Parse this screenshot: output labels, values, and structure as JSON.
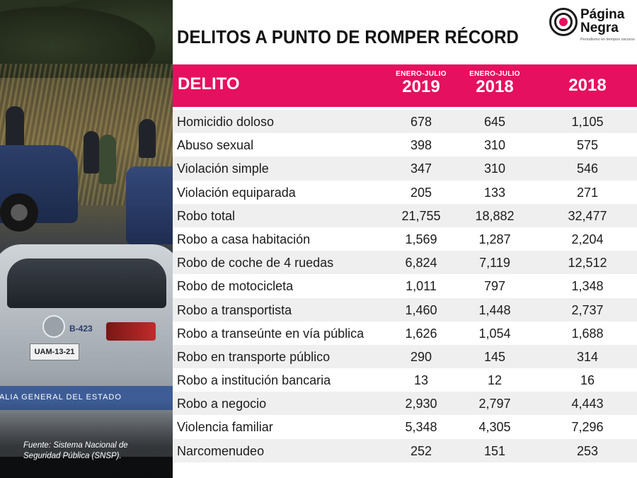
{
  "title": "DELITOS A PUNTO DE ROMPER RÉCORD",
  "logo": {
    "name_line1": "Página",
    "name_line2": "Negra",
    "tagline": "Periodismo en tiempos oscuros",
    "accent": "#e5105f"
  },
  "source": "Fuente: Sistema Nacional de Seguridad Pública (SNSP).",
  "photo_text": {
    "plate": "UAM-13-21",
    "unit": "B-423",
    "strip": "CALIA GENERAL DEL ESTADO"
  },
  "colors": {
    "header_bg": "#e5105f",
    "row_alt": "#efefef",
    "text": "#1c1c1c"
  },
  "chart_data": {
    "type": "table",
    "columns": [
      {
        "label": "DELITO"
      },
      {
        "sub": "ENERO-JULIO",
        "label": "2019"
      },
      {
        "sub": "ENERO-JULIO",
        "label": "2018"
      },
      {
        "sub": "",
        "label": "2018"
      }
    ],
    "rows": [
      {
        "delito": "Homicidio doloso",
        "values": [
          "678",
          "645",
          "1,105"
        ]
      },
      {
        "delito": "Abuso sexual",
        "values": [
          "398",
          "310",
          "575"
        ]
      },
      {
        "delito": "Violación simple",
        "values": [
          "347",
          "310",
          "546"
        ]
      },
      {
        "delito": "Violación equiparada",
        "values": [
          "205",
          "133",
          "271"
        ]
      },
      {
        "delito": "Robo total",
        "values": [
          "21,755",
          "18,882",
          "32,477"
        ]
      },
      {
        "delito": "Robo a casa habitación",
        "values": [
          "1,569",
          "1,287",
          "2,204"
        ]
      },
      {
        "delito": "Robo de coche de 4 ruedas",
        "values": [
          "6,824",
          "7,119",
          "12,512"
        ]
      },
      {
        "delito": "Robo de motocicleta",
        "values": [
          "1,011",
          "797",
          "1,348"
        ]
      },
      {
        "delito": "Robo a transportista",
        "values": [
          "1,460",
          "1,448",
          "2,737"
        ]
      },
      {
        "delito": "Robo a transeúnte en vía pública",
        "values": [
          "1,626",
          "1,054",
          "1,688"
        ]
      },
      {
        "delito": "Robo en transporte público",
        "values": [
          "290",
          "145",
          "314"
        ]
      },
      {
        "delito": "Robo a institución bancaria",
        "values": [
          "13",
          "12",
          "16"
        ]
      },
      {
        "delito": "Robo a negocio",
        "values": [
          "2,930",
          "2,797",
          "4,443"
        ]
      },
      {
        "delito": "Violencia familiar",
        "values": [
          "5,348",
          "4,305",
          "7,296"
        ]
      },
      {
        "delito": "Narcomenudeo",
        "values": [
          "252",
          "151",
          "253"
        ]
      }
    ]
  }
}
